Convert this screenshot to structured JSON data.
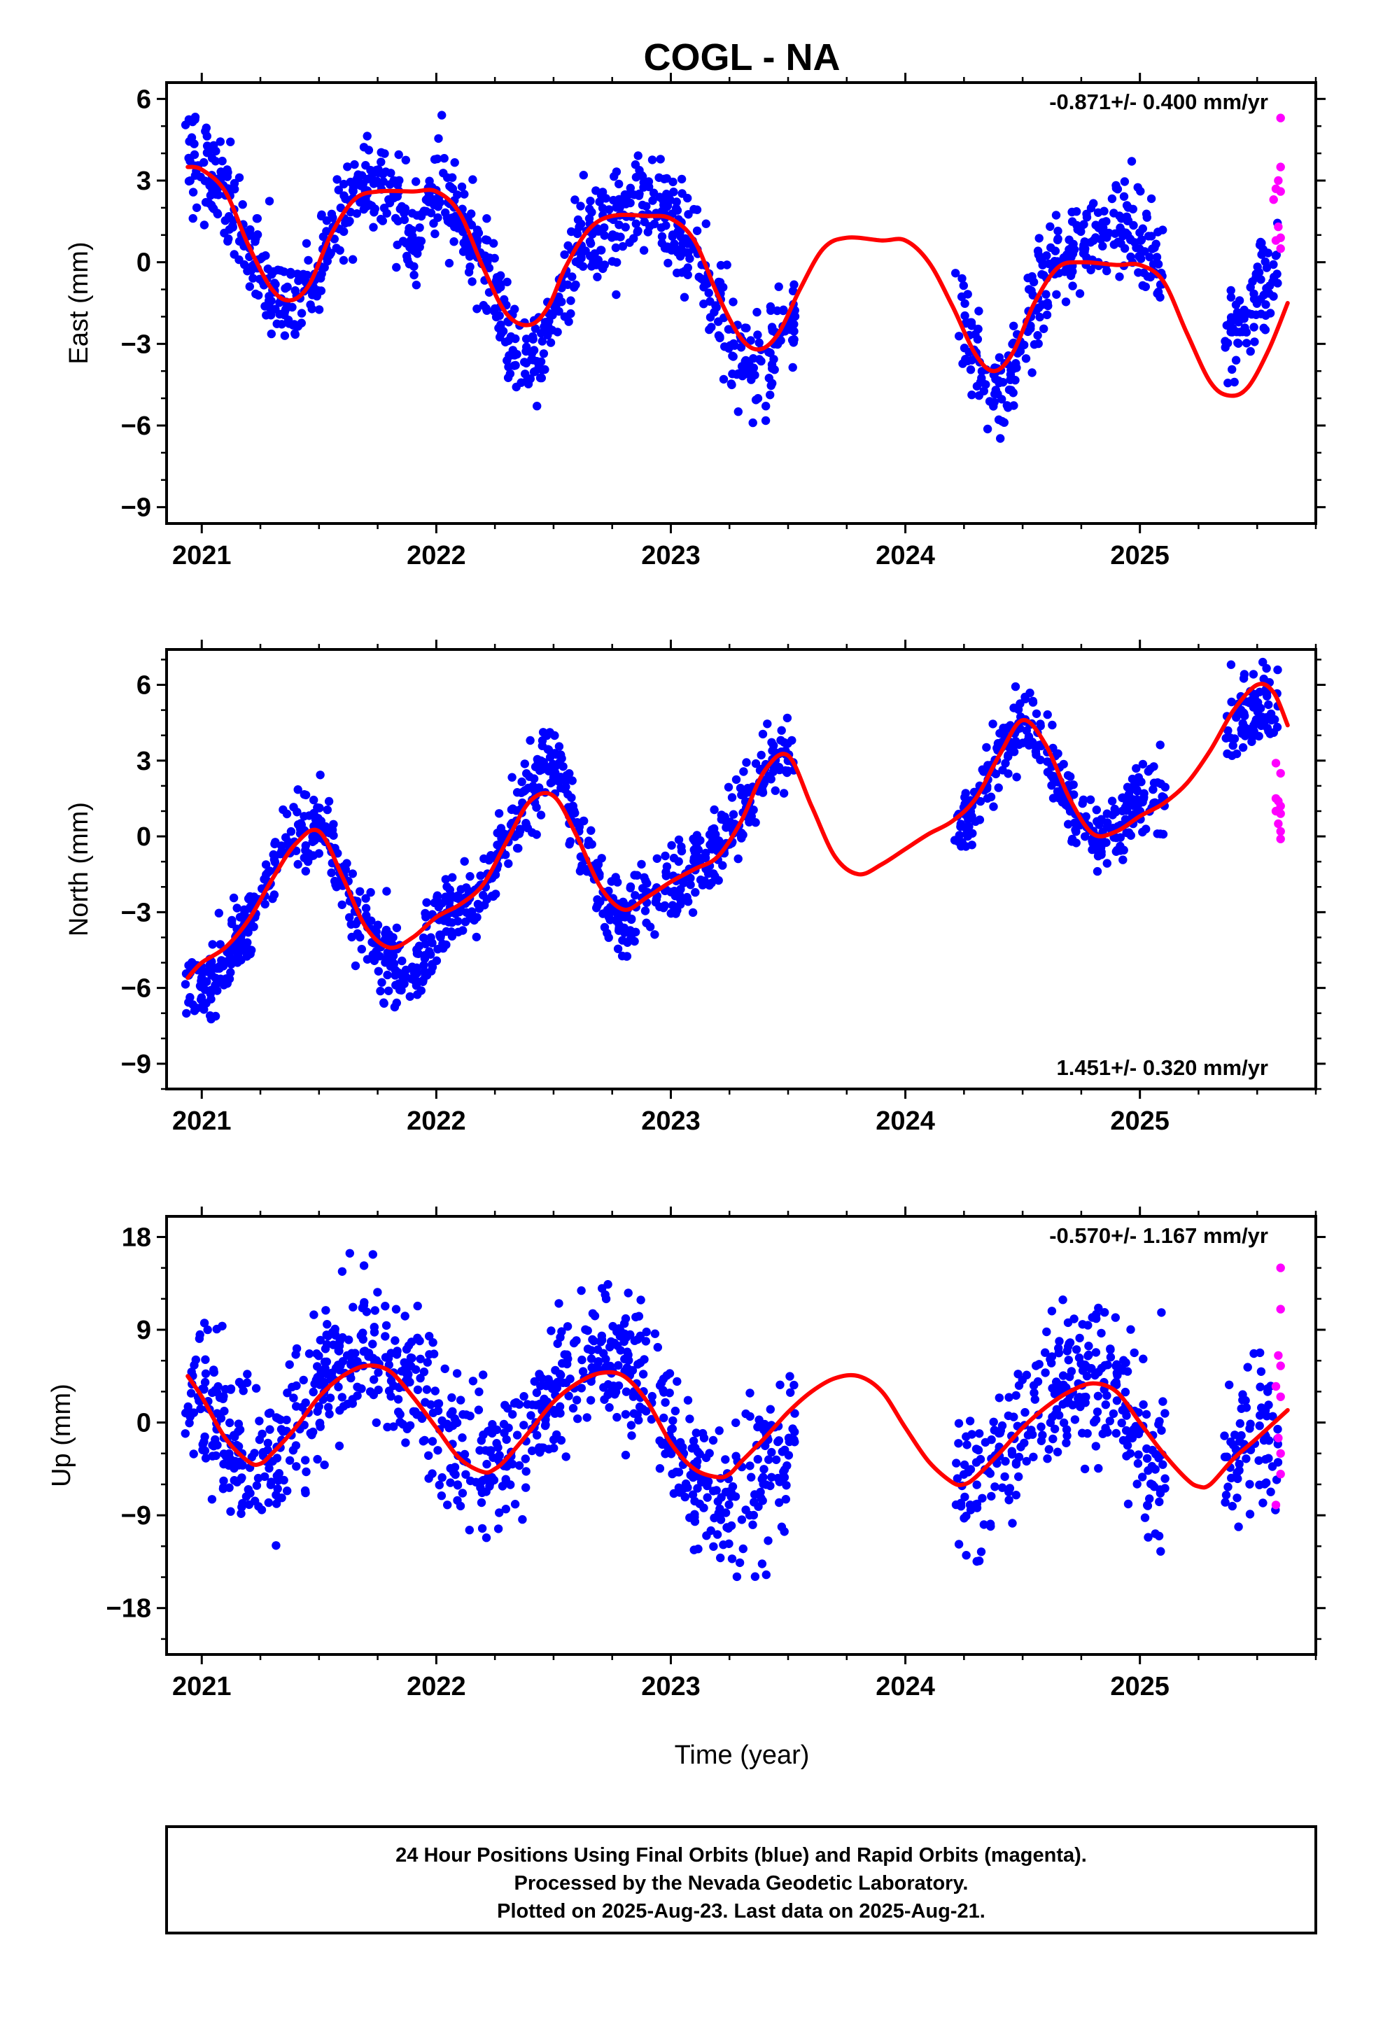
{
  "title": "COGL - NA",
  "colors": {
    "final": "#0000ff",
    "rapid": "#ff00ff",
    "model": "#ff0000"
  },
  "footer": {
    "line1": "24 Hour Positions Using Final Orbits (blue) and Rapid Orbits (magenta).",
    "line2": "Processed by the Nevada Geodetic Laboratory.",
    "line3": "Plotted on 2025-Aug-23. Last data on 2025-Aug-21."
  },
  "chart_data": [
    {
      "type": "scatter",
      "component": "east",
      "ylabel": "East (mm)",
      "xlabel": "",
      "rate_label": "-0.871+/- 0.400 mm/yr",
      "rate_position": "top-right",
      "xlim": [
        2020.85,
        2025.75
      ],
      "ylim": [
        -9.6,
        6.6
      ],
      "xticks": [
        2021,
        2022,
        2023,
        2024,
        2025
      ],
      "yticks": [
        -9,
        -6,
        -3,
        0,
        3,
        6
      ],
      "ytick_labels": [
        "−9",
        "−6",
        "−3",
        "0",
        "3",
        "6"
      ],
      "model": {
        "x": [
          2020.94,
          2021.0,
          2021.1,
          2021.2,
          2021.3,
          2021.38,
          2021.46,
          2021.55,
          2021.65,
          2021.75,
          2021.9,
          2022.0,
          2022.1,
          2022.2,
          2022.3,
          2022.4,
          2022.48,
          2022.55,
          2022.65,
          2022.75,
          2022.9,
          2023.0,
          2023.1,
          2023.2,
          2023.3,
          2023.38,
          2023.46,
          2023.55,
          2023.65,
          2023.75,
          2023.9,
          2024.0,
          2024.1,
          2024.2,
          2024.3,
          2024.38,
          2024.46,
          2024.55,
          2024.65,
          2024.75,
          2024.9,
          2025.0,
          2025.1,
          2025.2,
          2025.3,
          2025.38,
          2025.46,
          2025.55,
          2025.63
        ],
        "y": [
          3.5,
          3.4,
          2.6,
          0.6,
          -1.0,
          -1.4,
          -0.8,
          1.0,
          2.3,
          2.6,
          2.6,
          2.6,
          1.8,
          -0.2,
          -1.9,
          -2.3,
          -1.6,
          -0.2,
          1.2,
          1.7,
          1.7,
          1.6,
          0.8,
          -1.2,
          -2.8,
          -3.2,
          -2.6,
          -1.0,
          0.5,
          0.9,
          0.8,
          0.8,
          0.0,
          -1.6,
          -3.4,
          -4.0,
          -3.3,
          -1.5,
          -0.2,
          0.0,
          -0.1,
          -0.1,
          -0.7,
          -2.6,
          -4.4,
          -4.9,
          -4.6,
          -3.2,
          -1.5
        ]
      },
      "series": [
        {
          "name": "Final Orbits",
          "scatter_sd": 0.9,
          "knots": [
            [
              2020.93,
              4.4
            ],
            [
              2021.0,
              3.4
            ],
            [
              2021.1,
              2.6
            ],
            [
              2021.2,
              0.6
            ],
            [
              2021.3,
              -1.0
            ],
            [
              2021.38,
              -1.4
            ],
            [
              2021.46,
              -0.8
            ],
            [
              2021.55,
              1.0
            ],
            [
              2021.65,
              2.5
            ],
            [
              2021.75,
              3.0
            ],
            [
              2021.85,
              2.0
            ],
            [
              2021.92,
              0.5
            ],
            [
              2022.0,
              3.0
            ],
            [
              2022.1,
              1.8
            ],
            [
              2022.2,
              -0.2
            ],
            [
              2022.3,
              -2.5
            ],
            [
              2022.4,
              -3.8
            ],
            [
              2022.5,
              -2.0
            ],
            [
              2022.6,
              0.5
            ],
            [
              2022.75,
              1.5
            ],
            [
              2022.9,
              2.7
            ],
            [
              2023.0,
              1.6
            ],
            [
              2023.1,
              0.4
            ],
            [
              2023.2,
              -1.5
            ],
            [
              2023.3,
              -3.5
            ],
            [
              2023.4,
              -4.0
            ],
            [
              2023.52,
              -2.0
            ],
            [
              2024.22,
              -1.2
            ],
            [
              2024.3,
              -3.2
            ],
            [
              2024.38,
              -4.8
            ],
            [
              2024.46,
              -3.5
            ],
            [
              2024.55,
              -1.5
            ],
            [
              2024.65,
              0.0
            ],
            [
              2024.75,
              0.5
            ],
            [
              2024.85,
              1.0
            ],
            [
              2024.95,
              1.3
            ],
            [
              2025.03,
              0.5
            ],
            [
              2025.1,
              -0.2
            ],
            [
              2025.36,
              -3.0
            ],
            [
              2025.45,
              -2.0
            ],
            [
              2025.55,
              -0.6
            ],
            [
              2025.59,
              0.3
            ]
          ],
          "count": 1290,
          "gaps": [
            [
              2023.53,
              2024.21
            ],
            [
              2025.11,
              2025.36
            ]
          ]
        },
        {
          "name": "Rapid Orbits",
          "points": [
            [
              2025.6,
              5.3
            ],
            [
              2025.6,
              3.5
            ],
            [
              2025.59,
              3.0
            ],
            [
              2025.58,
              2.7
            ],
            [
              2025.6,
              2.6
            ],
            [
              2025.57,
              2.3
            ],
            [
              2025.59,
              1.3
            ],
            [
              2025.6,
              0.9
            ],
            [
              2025.58,
              0.8
            ],
            [
              2025.6,
              0.5
            ]
          ]
        }
      ]
    },
    {
      "type": "scatter",
      "component": "north",
      "ylabel": "North (mm)",
      "xlabel": "",
      "rate_label": "1.451+/- 0.320 mm/yr",
      "rate_position": "bottom-right",
      "xlim": [
        2020.85,
        2025.75
      ],
      "ylim": [
        -10.0,
        7.4
      ],
      "xticks": [
        2021,
        2022,
        2023,
        2024,
        2025
      ],
      "yticks": [
        -9,
        -6,
        -3,
        0,
        3,
        6
      ],
      "ytick_labels": [
        "−9",
        "−6",
        "−3",
        "0",
        "3",
        "6"
      ],
      "model": {
        "x": [
          2020.94,
          2021.0,
          2021.1,
          2021.2,
          2021.3,
          2021.4,
          2021.5,
          2021.6,
          2021.7,
          2021.8,
          2021.9,
          2022.0,
          2022.1,
          2022.2,
          2022.3,
          2022.4,
          2022.5,
          2022.6,
          2022.7,
          2022.8,
          2022.9,
          2023.0,
          2023.1,
          2023.2,
          2023.3,
          2023.4,
          2023.5,
          2023.6,
          2023.7,
          2023.8,
          2023.9,
          2024.0,
          2024.1,
          2024.2,
          2024.3,
          2024.4,
          2024.5,
          2024.6,
          2024.7,
          2024.8,
          2024.9,
          2025.0,
          2025.1,
          2025.2,
          2025.3,
          2025.4,
          2025.5,
          2025.57,
          2025.63
        ],
        "y": [
          -5.6,
          -5.0,
          -4.4,
          -3.3,
          -1.7,
          -0.3,
          0.2,
          -1.6,
          -3.6,
          -4.4,
          -4.0,
          -3.2,
          -2.7,
          -1.9,
          -0.2,
          1.4,
          1.6,
          0.0,
          -2.0,
          -2.9,
          -2.4,
          -1.8,
          -1.3,
          -0.8,
          0.6,
          2.6,
          3.2,
          1.2,
          -0.8,
          -1.5,
          -1.1,
          -0.5,
          0.1,
          0.6,
          1.5,
          3.2,
          4.6,
          3.6,
          1.5,
          0.1,
          0.2,
          0.8,
          1.3,
          2.1,
          3.4,
          5.0,
          6.0,
          5.7,
          4.4
        ]
      },
      "series": [
        {
          "name": "Final Orbits",
          "scatter_sd": 0.75,
          "knots": [
            [
              2020.93,
              -5.5
            ],
            [
              2021.0,
              -6.0
            ],
            [
              2021.1,
              -5.0
            ],
            [
              2021.2,
              -3.5
            ],
            [
              2021.3,
              -1.5
            ],
            [
              2021.4,
              0.0
            ],
            [
              2021.5,
              0.5
            ],
            [
              2021.6,
              -1.5
            ],
            [
              2021.7,
              -3.8
            ],
            [
              2021.8,
              -5.0
            ],
            [
              2021.9,
              -5.5
            ],
            [
              2022.0,
              -3.5
            ],
            [
              2022.1,
              -3.0
            ],
            [
              2022.2,
              -2.0
            ],
            [
              2022.3,
              0.0
            ],
            [
              2022.4,
              2.0
            ],
            [
              2022.5,
              3.0
            ],
            [
              2022.6,
              0.3
            ],
            [
              2022.7,
              -2.0
            ],
            [
              2022.8,
              -3.5
            ],
            [
              2022.9,
              -2.5
            ],
            [
              2023.0,
              -1.8
            ],
            [
              2023.1,
              -1.2
            ],
            [
              2023.2,
              -0.5
            ],
            [
              2023.3,
              0.8
            ],
            [
              2023.4,
              2.6
            ],
            [
              2023.52,
              3.5
            ],
            [
              2024.22,
              0.0
            ],
            [
              2024.3,
              1.5
            ],
            [
              2024.4,
              3.2
            ],
            [
              2024.5,
              4.6
            ],
            [
              2024.6,
              3.5
            ],
            [
              2024.7,
              1.5
            ],
            [
              2024.8,
              0.0
            ],
            [
              2024.9,
              0.5
            ],
            [
              2025.0,
              1.5
            ],
            [
              2025.1,
              1.8
            ],
            [
              2025.36,
              4.0
            ],
            [
              2025.45,
              5.0
            ],
            [
              2025.55,
              5.2
            ],
            [
              2025.59,
              5.0
            ]
          ],
          "count": 1300,
          "gaps": [
            [
              2023.53,
              2024.21
            ],
            [
              2025.11,
              2025.36
            ]
          ]
        },
        {
          "name": "Rapid Orbits",
          "points": [
            [
              2025.58,
              2.9
            ],
            [
              2025.6,
              2.5
            ],
            [
              2025.59,
              1.4
            ],
            [
              2025.6,
              1.2
            ],
            [
              2025.58,
              1.0
            ],
            [
              2025.6,
              0.9
            ],
            [
              2025.59,
              0.5
            ],
            [
              2025.6,
              0.2
            ],
            [
              2025.6,
              -0.1
            ],
            [
              2025.58,
              1.5
            ]
          ]
        }
      ]
    },
    {
      "type": "scatter",
      "component": "up",
      "ylabel": "Up (mm)",
      "xlabel": "Time (year)",
      "rate_label": "-0.570+/- 1.167 mm/yr",
      "rate_position": "top-right",
      "xlim": [
        2020.85,
        2025.75
      ],
      "ylim": [
        -22.5,
        20.0
      ],
      "xticks": [
        2021,
        2022,
        2023,
        2024,
        2025
      ],
      "yticks": [
        -18,
        -9,
        0,
        9,
        18
      ],
      "ytick_labels": [
        "−18",
        "−9",
        "0",
        "9",
        "18"
      ],
      "model": {
        "x": [
          2020.94,
          2021.0,
          2021.1,
          2021.2,
          2021.25,
          2021.3,
          2021.4,
          2021.5,
          2021.6,
          2021.7,
          2021.8,
          2021.9,
          2022.0,
          2022.1,
          2022.2,
          2022.25,
          2022.3,
          2022.4,
          2022.5,
          2022.6,
          2022.7,
          2022.8,
          2022.9,
          2023.0,
          2023.1,
          2023.2,
          2023.25,
          2023.3,
          2023.4,
          2023.5,
          2023.6,
          2023.7,
          2023.8,
          2023.9,
          2024.0,
          2024.1,
          2024.2,
          2024.25,
          2024.3,
          2024.4,
          2024.5,
          2024.6,
          2024.7,
          2024.8,
          2024.9,
          2025.0,
          2025.1,
          2025.2,
          2025.25,
          2025.3,
          2025.4,
          2025.5,
          2025.63
        ],
        "y": [
          4.5,
          2.5,
          -1.5,
          -3.8,
          -4.0,
          -3.0,
          -0.5,
          2.5,
          4.5,
          5.5,
          5.0,
          2.5,
          -0.5,
          -3.5,
          -4.8,
          -4.5,
          -3.5,
          -0.8,
          2.0,
          3.8,
          4.8,
          4.5,
          2.0,
          -2.0,
          -4.5,
          -5.3,
          -5.0,
          -3.8,
          -1.5,
          1.0,
          3.0,
          4.3,
          4.5,
          3.0,
          -0.5,
          -3.8,
          -5.8,
          -6.0,
          -5.3,
          -3.0,
          -0.5,
          1.5,
          3.0,
          3.8,
          3.0,
          0.0,
          -3.0,
          -5.5,
          -6.2,
          -6.0,
          -3.5,
          -1.5,
          1.2
        ]
      },
      "series": [
        {
          "name": "Final Orbits",
          "scatter_sd": 3.6,
          "knots": [
            [
              2020.93,
              3.0
            ],
            [
              2021.0,
              2.0
            ],
            [
              2021.1,
              -1.0
            ],
            [
              2021.2,
              -4.0
            ],
            [
              2021.3,
              -3.5
            ],
            [
              2021.4,
              -1.0
            ],
            [
              2021.5,
              3.0
            ],
            [
              2021.6,
              6.0
            ],
            [
              2021.7,
              7.0
            ],
            [
              2021.8,
              6.0
            ],
            [
              2021.9,
              3.0
            ],
            [
              2022.0,
              1.0
            ],
            [
              2022.1,
              -2.5
            ],
            [
              2022.2,
              -4.0
            ],
            [
              2022.3,
              -3.5
            ],
            [
              2022.4,
              -1.0
            ],
            [
              2022.5,
              2.0
            ],
            [
              2022.6,
              4.0
            ],
            [
              2022.7,
              5.5
            ],
            [
              2022.8,
              6.0
            ],
            [
              2022.9,
              3.0
            ],
            [
              2023.0,
              -1.0
            ],
            [
              2023.1,
              -5.0
            ],
            [
              2023.2,
              -8.0
            ],
            [
              2023.3,
              -7.0
            ],
            [
              2023.4,
              -5.0
            ],
            [
              2023.52,
              -2.0
            ],
            [
              2024.22,
              -7.0
            ],
            [
              2024.3,
              -6.0
            ],
            [
              2024.4,
              -3.0
            ],
            [
              2024.5,
              -1.0
            ],
            [
              2024.6,
              2.0
            ],
            [
              2024.7,
              3.5
            ],
            [
              2024.8,
              4.5
            ],
            [
              2024.9,
              2.5
            ],
            [
              2025.0,
              -2.0
            ],
            [
              2025.1,
              -5.0
            ],
            [
              2025.36,
              -3.0
            ],
            [
              2025.45,
              -2.0
            ],
            [
              2025.55,
              -1.0
            ],
            [
              2025.59,
              -1.0
            ]
          ],
          "count": 1260,
          "gaps": [
            [
              2023.53,
              2024.21
            ],
            [
              2025.11,
              2025.36
            ]
          ]
        },
        {
          "name": "Rapid Orbits",
          "points": [
            [
              2025.6,
              15.0
            ],
            [
              2025.6,
              11.0
            ],
            [
              2025.59,
              6.5
            ],
            [
              2025.6,
              5.5
            ],
            [
              2025.58,
              3.5
            ],
            [
              2025.6,
              2.5
            ],
            [
              2025.59,
              -1.5
            ],
            [
              2025.6,
              -3.0
            ],
            [
              2025.6,
              -5.0
            ],
            [
              2025.58,
              -8.0
            ]
          ]
        }
      ]
    }
  ]
}
